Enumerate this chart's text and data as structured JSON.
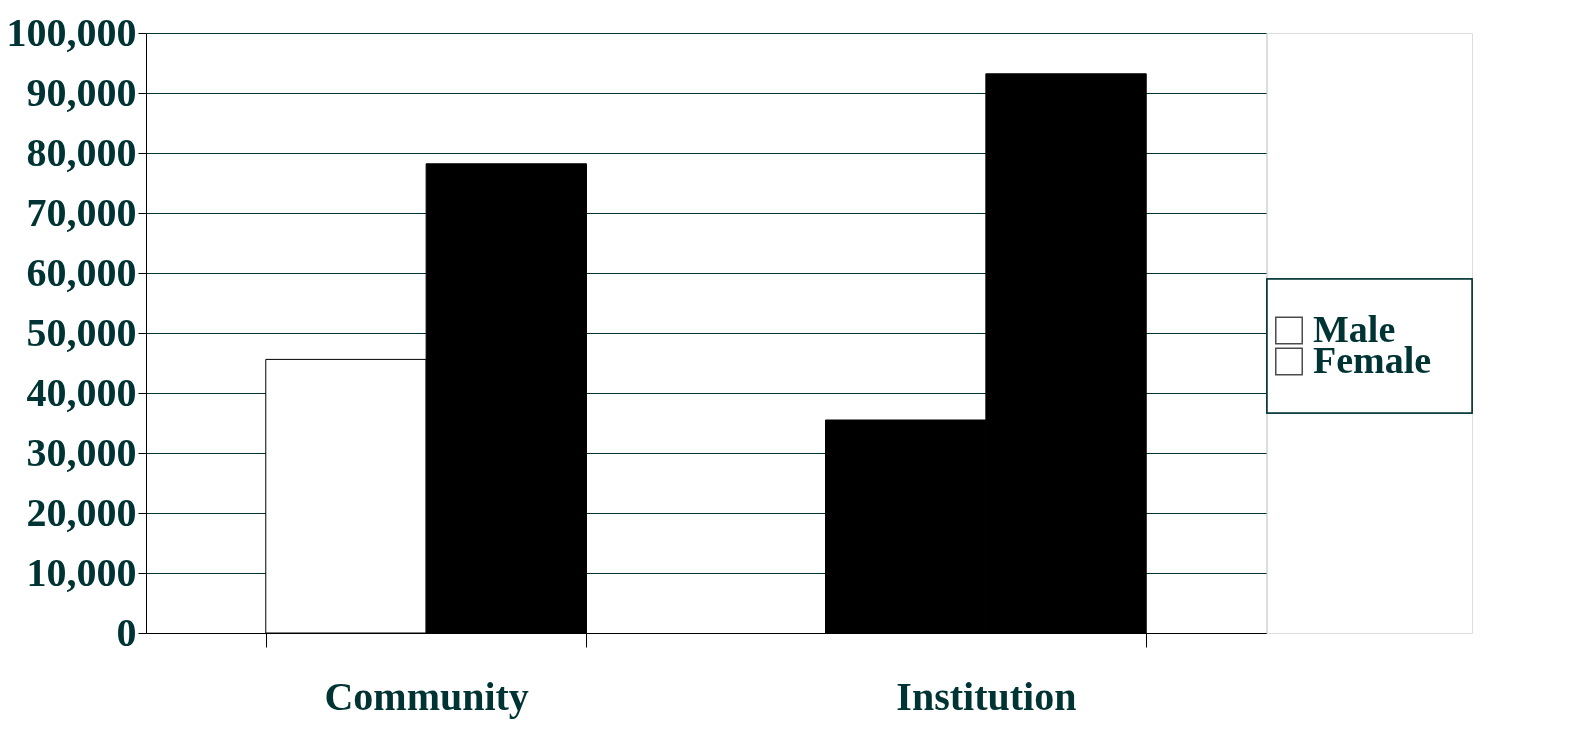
{
  "chart_data": {
    "type": "bar",
    "categories": [
      "Community",
      "Institution"
    ],
    "series": [
      {
        "name": "Male",
        "color": "#ffffff",
        "colors": [
          "#ffffff",
          "#000000"
        ],
        "values": [
          45600,
          35500
        ]
      },
      {
        "name": "Female",
        "color": "#ffffff",
        "colors": [
          "#000000",
          "#000000"
        ],
        "values": [
          78200,
          93200
        ]
      }
    ],
    "ylim": [
      0,
      100000
    ],
    "yticks": [
      0,
      {
        "value": 10000,
        "label": "10,000"
      },
      {
        "value": 20000,
        "label": "20,000"
      },
      {
        "value": 30000,
        "label": "30,000"
      },
      {
        "value": 40000,
        "label": "40,000"
      },
      {
        "value": 50000,
        "label": "50,000"
      },
      {
        "value": 60000,
        "label": "60,000"
      },
      {
        "value": 70000,
        "label": "70,000"
      },
      {
        "value": 80000,
        "label": "80,000"
      },
      {
        "value": 90000,
        "label": "90,000"
      },
      {
        "value": 100000,
        "label": "100,000"
      }
    ],
    "grid": "y",
    "legend": "right"
  }
}
